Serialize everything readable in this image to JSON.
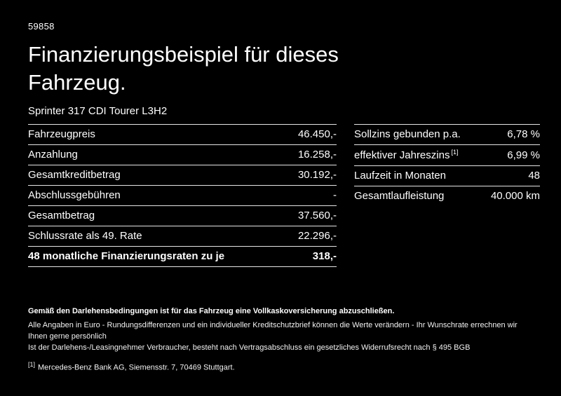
{
  "colors": {
    "background": "#000000",
    "text": "#ffffff",
    "divider": "#e5e5e5"
  },
  "header": {
    "doc_id": "59858",
    "title": "Finanzierungsbeispiel für dieses Fahrzeug.",
    "subtitle": "Sprinter 317 CDI Tourer L3H2"
  },
  "left_table": {
    "rows": [
      {
        "label": "Fahrzeugpreis",
        "value": "46.450,-"
      },
      {
        "label": "Anzahlung",
        "value": "16.258,-"
      },
      {
        "label": "Gesamtkreditbetrag",
        "value": "30.192,-"
      },
      {
        "label": "Abschlussgebühren",
        "value": "-"
      },
      {
        "label": "Gesamtbetrag",
        "value": "37.560,-"
      },
      {
        "label": "Schlussrate als 49. Rate",
        "value": "22.296,-"
      },
      {
        "label": "48 monatliche Finanzierungsraten zu je",
        "value": "318,-"
      }
    ]
  },
  "right_table": {
    "rows": [
      {
        "label": "Sollzins gebunden p.a.",
        "sup": "",
        "value": "6,78 %"
      },
      {
        "label": "effektiver Jahreszins",
        "sup": "[1]",
        "value": "6,99 %"
      },
      {
        "label": "Laufzeit in Monaten",
        "sup": "",
        "value": "48"
      },
      {
        "label": "Gesamtlaufleistung",
        "sup": "",
        "value": "40.000 km"
      }
    ]
  },
  "footer": {
    "line1": "Gemäß den Darlehensbedingungen ist für das Fahrzeug eine Vollkaskoversicherung abzuschließen.",
    "line2": "Alle Angaben in Euro - Rundungsdifferenzen und ein individueller Kreditschutzbrief können die Werte verändern - Ihr Wunschrate errechnen wir Ihnen gerne persönlich",
    "line3": "Ist der Darlehens-/Leasingnehmer Verbraucher, besteht nach Vertragsabschluss ein gesetzliches Widerrufsrecht nach § 495 BGB",
    "footnote_marker": "[1]",
    "footnote_text": "Mercedes-Benz Bank AG, Siemensstr. 7, 70469 Stuttgart."
  }
}
